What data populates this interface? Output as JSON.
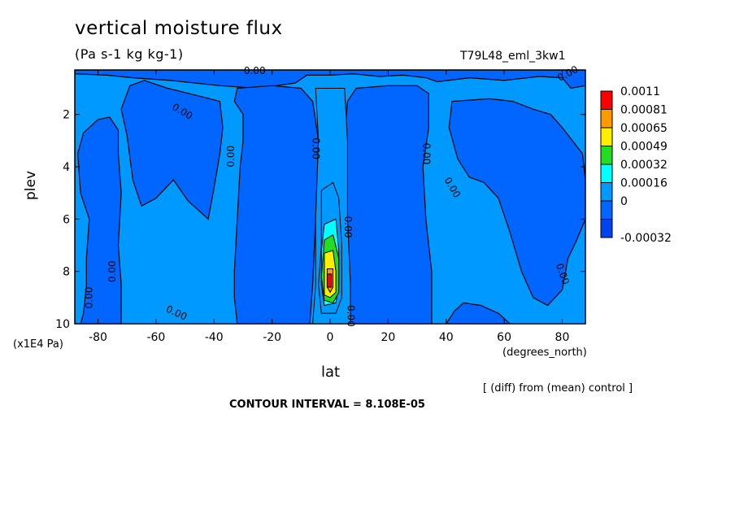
{
  "chart_data": {
    "type": "heatmap",
    "title": "vertical moisture flux",
    "units": "(Pa s-1 kg kg-1)",
    "run_name": "T79L48_eml_3kw1",
    "xlabel": "lat",
    "x_unit": "(degrees_north)",
    "ylabel": "plev",
    "y_unit": "(x1E4 Pa)",
    "footer_note": "[ (diff) from (mean) control ]",
    "contour_interval_text": "CONTOUR INTERVAL = 8.108E-05",
    "x_range": [
      -88,
      88
    ],
    "y_range": [
      0.3,
      10
    ],
    "y_inverted": true,
    "x_ticks": [
      "-80",
      "-60",
      "-40",
      "-20",
      "0",
      "20",
      "40",
      "60",
      "80"
    ],
    "x_tick_values": [
      -80,
      -60,
      -40,
      -20,
      0,
      20,
      40,
      60,
      80
    ],
    "y_ticks": [
      "2",
      "4",
      "6",
      "8",
      "10"
    ],
    "y_tick_values": [
      2,
      4,
      6,
      8,
      10
    ],
    "legend": {
      "position": "right",
      "labels": [
        "0.0011",
        "0.00081",
        "0.00065",
        "0.00049",
        "0.00032",
        "0.00016",
        "0",
        "-0.00032"
      ],
      "colors": [
        "#ff0000",
        "#ff9900",
        "#ffee00",
        "#22dd22",
        "#00ffff",
        "#0099ff",
        "#0066ff",
        "#0044ee"
      ]
    },
    "background_color": "#0099ff",
    "negative_color": "#0066ff",
    "contour_label_text": "0.00",
    "contour_labels": [
      {
        "lat": -26,
        "plev": 0.35,
        "rot": 0
      },
      {
        "lat": 82,
        "plev": 0.45,
        "rot": -28
      },
      {
        "lat": -51,
        "plev": 1.9,
        "rot": 30
      },
      {
        "lat": -34,
        "plev": 3.6,
        "rot": -90
      },
      {
        "lat": -5,
        "plev": 3.3,
        "rot": 90
      },
      {
        "lat": 33,
        "plev": 3.5,
        "rot": 90
      },
      {
        "lat": 42,
        "plev": 4.8,
        "rot": 60
      },
      {
        "lat": 6,
        "plev": 6.3,
        "rot": 90
      },
      {
        "lat": -75,
        "plev": 8.0,
        "rot": -90
      },
      {
        "lat": -83,
        "plev": 9.0,
        "rot": -90
      },
      {
        "lat": -53,
        "plev": 9.6,
        "rot": 25
      },
      {
        "lat": 80,
        "plev": 8.1,
        "rot": 70
      },
      {
        "lat": 7,
        "plev": 9.7,
        "rot": 90
      }
    ],
    "regions": {
      "negative": [
        {
          "name": "far-south",
          "outline": [
            [
              -88,
              0.3
            ],
            [
              -88,
              10
            ],
            [
              -86,
              10
            ],
            [
              -85,
              9.6
            ],
            [
              -84,
              8.5
            ],
            [
              -84,
              7.5
            ],
            [
              -83,
              6
            ],
            [
              -86,
              5.0
            ],
            [
              -87,
              3.5
            ],
            [
              -85,
              2.7
            ],
            [
              -80,
              2.2
            ],
            [
              -76,
              2.1
            ],
            [
              -73,
              2.6
            ],
            [
              -73,
              3.5
            ],
            [
              -72,
              5
            ],
            [
              -73,
              7
            ],
            [
              -72,
              8.5
            ],
            [
              -72,
              10
            ],
            [
              -88,
              10
            ]
          ]
        },
        {
          "name": "top-strip",
          "outline": [
            [
              -88,
              0.3
            ],
            [
              88,
              0.3
            ],
            [
              88,
              0.9
            ],
            [
              83,
              1.0
            ],
            [
              80,
              0.6
            ],
            [
              72,
              0.55
            ],
            [
              60,
              0.7
            ],
            [
              48,
              0.6
            ],
            [
              37,
              0.75
            ],
            [
              33,
              0.6
            ],
            [
              25,
              0.5
            ],
            [
              17,
              0.55
            ],
            [
              8,
              0.45
            ],
            [
              0,
              0.5
            ],
            [
              -8,
              0.5
            ],
            [
              -12,
              0.8
            ],
            [
              -25,
              1.0
            ],
            [
              -38,
              0.9
            ],
            [
              -55,
              0.7
            ],
            [
              -68,
              0.6
            ],
            [
              -77,
              0.5
            ],
            [
              -88,
              0.45
            ]
          ]
        },
        {
          "name": "south-mid",
          "outline": [
            [
              -69,
              0.9
            ],
            [
              -64,
              0.7
            ],
            [
              -56,
              1.0
            ],
            [
              -45,
              1.3
            ],
            [
              -38,
              1.5
            ],
            [
              -37,
              2.5
            ],
            [
              -38,
              3.5
            ],
            [
              -40,
              4.8
            ],
            [
              -42,
              6
            ],
            [
              -49,
              5.3
            ],
            [
              -54,
              4.5
            ],
            [
              -60,
              5.2
            ],
            [
              -65,
              5.5
            ],
            [
              -68,
              4.5
            ],
            [
              -70,
              2.8
            ],
            [
              -72,
              1.8
            ]
          ]
        },
        {
          "name": "south-tropics",
          "outline": [
            [
              -32,
              1.0
            ],
            [
              -20,
              0.9
            ],
            [
              -10,
              1.0
            ],
            [
              -6,
              1.5
            ],
            [
              -4,
              3
            ],
            [
              -5,
              6
            ],
            [
              -6,
              8.5
            ],
            [
              -7,
              10
            ],
            [
              -32,
              10
            ],
            [
              -33,
              9
            ],
            [
              -33,
              8
            ],
            [
              -32,
              6
            ],
            [
              -31,
              4
            ],
            [
              -30,
              3
            ],
            [
              -30,
              2
            ],
            [
              -33,
              1.5
            ]
          ]
        },
        {
          "name": "north-tropics",
          "outline": [
            [
              9,
              1.0
            ],
            [
              20,
              0.9
            ],
            [
              30,
              0.9
            ],
            [
              34,
              1.2
            ],
            [
              34,
              2.5
            ],
            [
              32,
              4
            ],
            [
              33,
              6
            ],
            [
              35,
              8
            ],
            [
              35,
              10
            ],
            [
              7,
              10
            ],
            [
              7,
              8.5
            ],
            [
              6,
              6
            ],
            [
              5,
              3
            ],
            [
              6,
              1.5
            ]
          ]
        },
        {
          "name": "north-mid",
          "outline": [
            [
              42,
              1.5
            ],
            [
              55,
              1.4
            ],
            [
              63,
              1.5
            ],
            [
              70,
              1.8
            ],
            [
              76,
              2.0
            ],
            [
              80,
              2.5
            ],
            [
              87,
              3.5
            ],
            [
              88,
              4.5
            ],
            [
              88,
              6.0
            ],
            [
              85,
              6.8
            ],
            [
              82,
              7.5
            ],
            [
              80,
              8.7
            ],
            [
              75,
              9.3
            ],
            [
              70,
              9.0
            ],
            [
              66,
              8.0
            ],
            [
              62,
              6.5
            ],
            [
              58,
              5.2
            ],
            [
              53,
              4.6
            ],
            [
              48,
              4.4
            ],
            [
              44,
              3.7
            ],
            [
              41,
              2.5
            ]
          ]
        },
        {
          "name": "north-bottom",
          "outline": [
            [
              40,
              10
            ],
            [
              43,
              9.5
            ],
            [
              46,
              9.2
            ],
            [
              52,
              9.3
            ],
            [
              58,
              9.6
            ],
            [
              62,
              10
            ]
          ]
        }
      ],
      "positive_core": [
        {
          "level": "0",
          "outline": [
            [
              -5,
              1.0
            ],
            [
              5,
              1.0
            ],
            [
              6,
              3
            ],
            [
              6,
              6
            ],
            [
              7,
              8.5
            ],
            [
              7,
              10
            ],
            [
              -6,
              10
            ],
            [
              -5,
              8.5
            ],
            [
              -5,
              6
            ],
            [
              -4,
              3
            ]
          ]
        },
        {
          "level": "0.00016",
          "outline": [
            [
              -3,
              4.9
            ],
            [
              1,
              4.6
            ],
            [
              3,
              5.2
            ],
            [
              4,
              7
            ],
            [
              4,
              9.0
            ],
            [
              2,
              9.6
            ],
            [
              -3,
              9.6
            ],
            [
              -4,
              8.5
            ],
            [
              -3,
              7
            ],
            [
              -3,
              6
            ]
          ]
        },
        {
          "level": "0.00032",
          "outline": [
            [
              -2,
              6.2
            ],
            [
              2,
              6.0
            ],
            [
              3,
              7.2
            ],
            [
              3,
              8.5
            ],
            [
              2,
              9.2
            ],
            [
              -2,
              9.3
            ],
            [
              -3,
              8.5
            ],
            [
              -3,
              7.2
            ]
          ]
        },
        {
          "level": "0.00049",
          "outline": [
            [
              -2,
              6.8
            ],
            [
              1,
              6.6
            ],
            [
              3,
              7.5
            ],
            [
              3,
              8.8
            ],
            [
              1,
              9.2
            ],
            [
              -2,
              9.1
            ],
            [
              -3,
              8.2
            ]
          ]
        },
        {
          "level": "0.00065",
          "outline": [
            [
              -2,
              7.3
            ],
            [
              1,
              7.2
            ],
            [
              2,
              8.0
            ],
            [
              2,
              8.8
            ],
            [
              0,
              9.0
            ],
            [
              -2,
              8.9
            ],
            [
              -2,
              8.0
            ]
          ]
        },
        {
          "level": "0.00081",
          "outline": [
            [
              -1,
              7.9
            ],
            [
              1,
              7.9
            ],
            [
              1,
              8.6
            ],
            [
              0,
              8.8
            ],
            [
              -1,
              8.6
            ]
          ]
        },
        {
          "level": "0.0011",
          "outline": [
            [
              -1,
              8.1
            ],
            [
              0.5,
              8.1
            ],
            [
              0.5,
              8.6
            ],
            [
              -1,
              8.6
            ]
          ]
        }
      ]
    }
  }
}
